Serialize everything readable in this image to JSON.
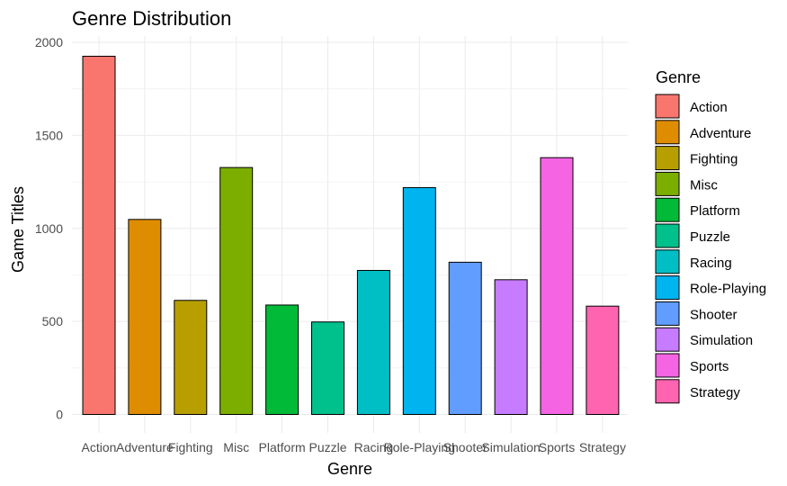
{
  "chart_data": {
    "type": "bar",
    "title": "Genre Distribution",
    "xlabel": "Genre",
    "ylabel": "Game Titles",
    "categories": [
      "Action",
      "Adventure",
      "Fighting",
      "Misc",
      "Platform",
      "Puzzle",
      "Racing",
      "Role-Playing",
      "Shooter",
      "Simulation",
      "Sports",
      "Strategy"
    ],
    "values": [
      1925,
      1048,
      613,
      1327,
      588,
      497,
      774,
      1219,
      818,
      724,
      1380,
      582
    ],
    "colors": [
      "#F8766D",
      "#DE8C00",
      "#B79F00",
      "#7CAE00",
      "#00BA38",
      "#00C08B",
      "#00BFC4",
      "#00B4F0",
      "#619CFF",
      "#C77CFF",
      "#F564E3",
      "#FF64B0"
    ],
    "ylim": [
      0,
      2000
    ],
    "yticks": [
      0,
      500,
      1000,
      1500,
      2000
    ],
    "grid": true,
    "legend": {
      "title": "Genre",
      "position": "right"
    }
  }
}
